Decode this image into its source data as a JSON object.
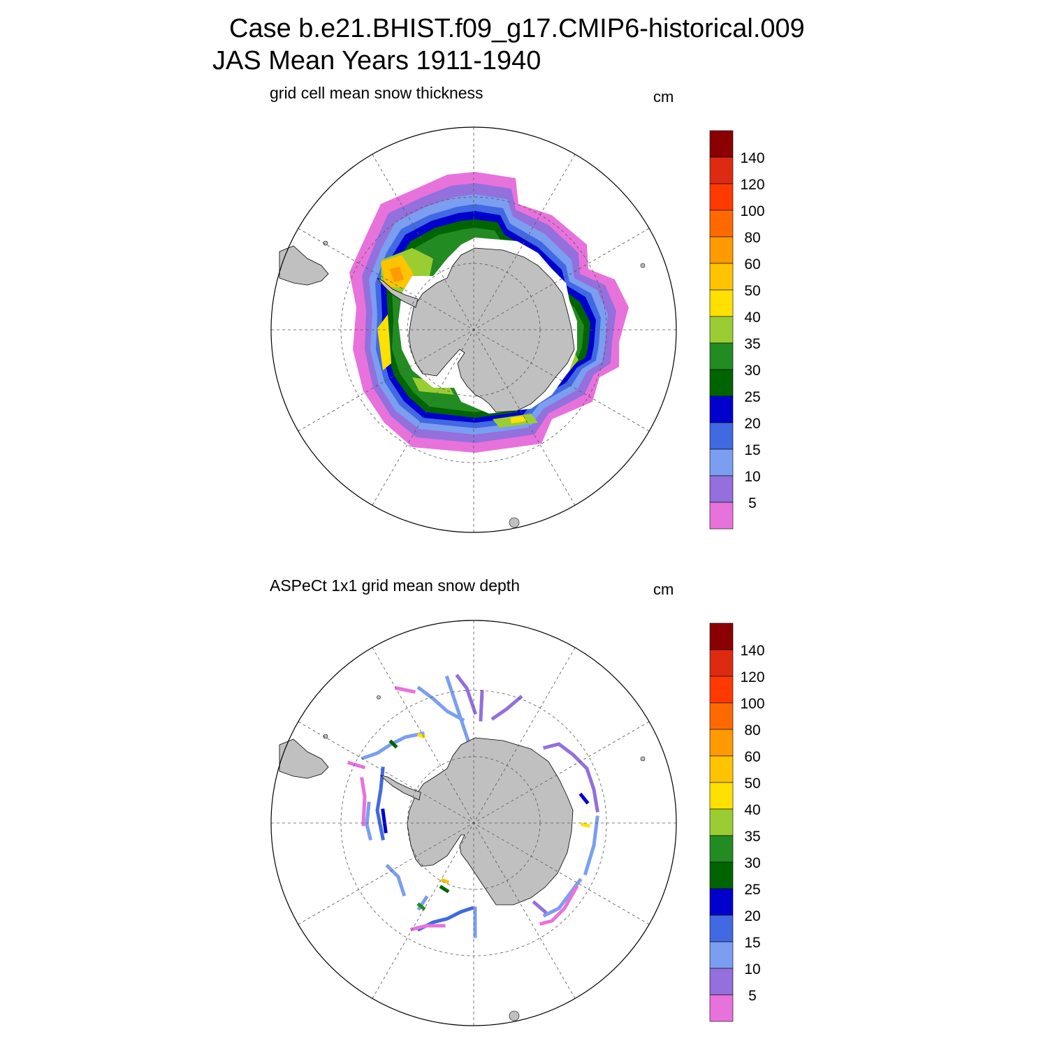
{
  "header": {
    "case_title": "Case b.e21.BHIST.f09_g17.CMIP6-historical.009",
    "period_title": "JAS Mean   Years 1911-1940"
  },
  "colors": {
    "land": "#c0c0c0",
    "grid": "#555555",
    "bins": [
      "#e872dc",
      "#9370db",
      "#7b9ef0",
      "#4169e1",
      "#0000cd",
      "#006400",
      "#228b22",
      "#9acd32",
      "#ffe000",
      "#ffc300",
      "#ff9a00",
      "#ff6a00",
      "#ff3a00",
      "#dd2a10",
      "#8b0000"
    ]
  },
  "colorbar": {
    "labels": [
      "5",
      "10",
      "15",
      "20",
      "25",
      "30",
      "35",
      "40",
      "50",
      "60",
      "80",
      "100",
      "120",
      "140"
    ]
  },
  "panels": [
    {
      "id": "model",
      "title": "grid cell mean snow thickness",
      "unit": "cm"
    },
    {
      "id": "obs",
      "title": "ASPeCt 1x1 grid mean snow depth",
      "unit": "cm"
    }
  ]
}
